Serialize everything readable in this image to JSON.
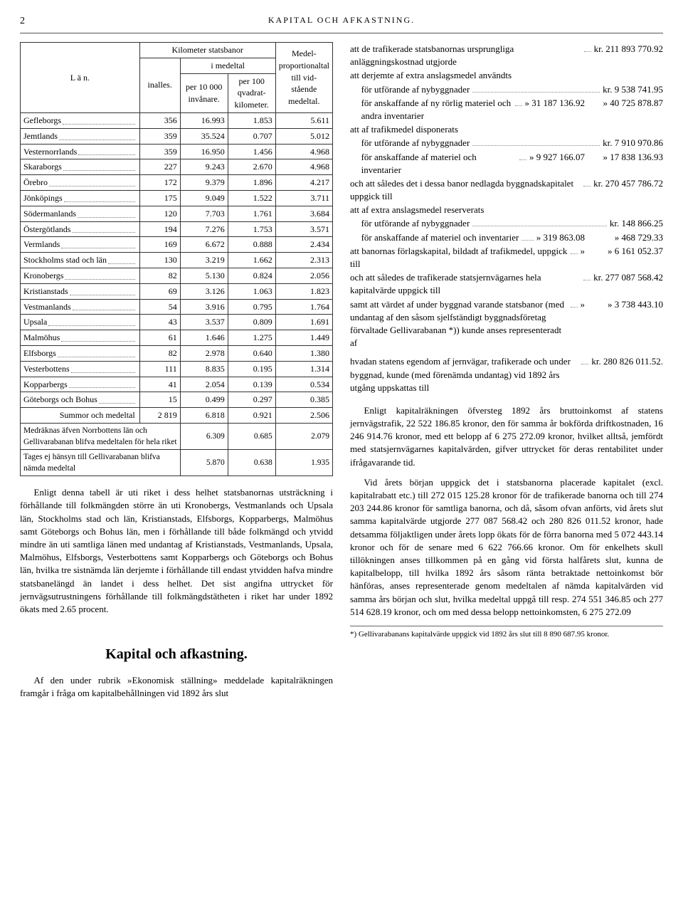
{
  "page_number": "2",
  "running_head": "KAPITAL OCH AFKASTNING.",
  "table": {
    "col_headers": {
      "lan": "L ä n.",
      "km_group": "Kilometer statsbanor",
      "inalles": "inalles.",
      "medeltal_group": "i medeltal",
      "per_10000": "per 10 000 invånare.",
      "per_100": "per 100 qvadrat-kilometer.",
      "medel_prop": "Medel-proportionaltal till vid-stående medeltal."
    },
    "rows": [
      {
        "lan": "Gefleborgs",
        "inalles": "356",
        "p10": "16.993",
        "p100": "1.853",
        "mp": "5.611"
      },
      {
        "lan": "Jemtlands",
        "inalles": "359",
        "p10": "35.524",
        "p100": "0.707",
        "mp": "5.012"
      },
      {
        "lan": "Vesternorrlands",
        "inalles": "359",
        "p10": "16.950",
        "p100": "1.456",
        "mp": "4.968"
      },
      {
        "lan": "Skaraborgs",
        "inalles": "227",
        "p10": "9.243",
        "p100": "2.670",
        "mp": "4.968"
      },
      {
        "lan": "Örebro",
        "inalles": "172",
        "p10": "9.379",
        "p100": "1.896",
        "mp": "4.217"
      },
      {
        "lan": "Jönköpings",
        "inalles": "175",
        "p10": "9.049",
        "p100": "1.522",
        "mp": "3.711"
      },
      {
        "lan": "Södermanlands",
        "inalles": "120",
        "p10": "7.703",
        "p100": "1.761",
        "mp": "3.684"
      },
      {
        "lan": "Östergötlands",
        "inalles": "194",
        "p10": "7.276",
        "p100": "1.753",
        "mp": "3.571"
      },
      {
        "lan": "Vermlands",
        "inalles": "169",
        "p10": "6.672",
        "p100": "0.888",
        "mp": "2.434"
      },
      {
        "lan": "Stockholms stad och län",
        "inalles": "130",
        "p10": "3.219",
        "p100": "1.662",
        "mp": "2.313"
      },
      {
        "lan": "Kronobergs",
        "inalles": "82",
        "p10": "5.130",
        "p100": "0.824",
        "mp": "2.056"
      },
      {
        "lan": "Kristianstads",
        "inalles": "69",
        "p10": "3.126",
        "p100": "1.063",
        "mp": "1.823"
      },
      {
        "lan": "Vestmanlands",
        "inalles": "54",
        "p10": "3.916",
        "p100": "0.795",
        "mp": "1.764"
      },
      {
        "lan": "Upsala",
        "inalles": "43",
        "p10": "3.537",
        "p100": "0.809",
        "mp": "1.691"
      },
      {
        "lan": "Malmöhus",
        "inalles": "61",
        "p10": "1.646",
        "p100": "1.275",
        "mp": "1.449"
      },
      {
        "lan": "Elfsborgs",
        "inalles": "82",
        "p10": "2.978",
        "p100": "0.640",
        "mp": "1.380"
      },
      {
        "lan": "Vesterbottens",
        "inalles": "111",
        "p10": "8.835",
        "p100": "0.195",
        "mp": "1.314"
      },
      {
        "lan": "Kopparbergs",
        "inalles": "41",
        "p10": "2.054",
        "p100": "0.139",
        "mp": "0.534"
      },
      {
        "lan": "Göteborgs och Bohus",
        "inalles": "15",
        "p10": "0.499",
        "p100": "0.297",
        "mp": "0.385"
      }
    ],
    "sum": {
      "label": "Summor och medeltal",
      "inalles": "2 819",
      "p10": "6.818",
      "p100": "0.921",
      "mp": "2.506"
    },
    "note1_label": "Medräknas äfven Norrbottens län och Gellivarabanan blifva medeltalen för hela riket",
    "note1": {
      "p10": "6.309",
      "p100": "0.685",
      "mp": "2.079"
    },
    "note2_label": "Tages ej hänsyn till Gellivarabanan blifva nämda medeltal",
    "note2": {
      "p10": "5.870",
      "p100": "0.638",
      "mp": "1.935"
    }
  },
  "left_para": "Enligt denna tabell är uti riket i dess helhet statsbanornas utsträckning i förhållande till folkmängden större än uti Kronobergs, Vestmanlands och Upsala län, Stockholms stad och län, Kristianstads, Elfsborgs, Kopparbergs, Malmöhus samt Göteborgs och Bohus län, men i förhållande till både folkmängd och ytvidd mindre än uti samtliga länen med undantag af Kristianstads, Vestmanlands, Upsala, Malmöhus, Elfsborgs, Vesterbottens samt Kopparbergs och Göteborgs och Bohus län, hvilka tre sistnämda län derjemte i förhållande till endast ytvidden hafva mindre statsbanelängd än landet i dess helhet. Det sist angifna uttrycket för jernvägsutrustningens förhållande till folkmängdstätheten i riket har under 1892 ökats med 2.65 procent.",
  "section_title": "Kapital och afkastning.",
  "left_intro": "Af den under rubrik »Ekonomisk ställning» meddelade kapitalräkningen framgår i fråga om kapitalbehållningen vid 1892 års slut",
  "right": {
    "lines": [
      {
        "txt": "att de trafikerade statsbanornas ursprungliga anläggningskostnad utgjorde",
        "amt": "kr. 211 893 770.92"
      },
      {
        "txt": "att derjemte af extra anslagsmedel användts"
      },
      {
        "txt": "för utförande af nybyggnader",
        "sub": true,
        "amt": "kr.  9 538 741.95"
      },
      {
        "txt": "för anskaffande af ny rörlig materiel och andra inventarier",
        "sub": true,
        "amt": "»  31 187 136.92",
        "amt2": "40 725 878.87"
      },
      {
        "txt": "att af trafikmedel disponerats"
      },
      {
        "txt": "för utförande af nybyggnader",
        "sub": true,
        "amt": "kr.  7 910 970.86"
      },
      {
        "txt": "för anskaffande af materiel och inventarier",
        "sub": true,
        "amt": "»   9 927 166.07",
        "amt2": "17 838 136.93"
      },
      {
        "txt": "och att således det i dessa banor nedlagda byggnadskapitalet uppgick till",
        "amt": "kr. 270 457 786.72"
      },
      {
        "txt": "att af extra anslagsmedel reserverats"
      },
      {
        "txt": "för utförande af nybyggnader",
        "sub": true,
        "amt": "kr.  148 866.25"
      },
      {
        "txt": "för anskaffande af materiel och inventarier",
        "sub": true,
        "amt": "»   319 863.08",
        "amt2": "468 729.33"
      },
      {
        "txt": "att banornas förlagskapital, bildadt af trafikmedel, uppgick till",
        "amt": "»",
        "amt2": "6 161 052.37"
      },
      {
        "txt": "och att således de trafikerade statsjernvägarnes hela kapitalvärde uppgick till",
        "amt": "kr. 277 087 568.42"
      },
      {
        "txt": "samt att värdet af under byggnad varande statsbanor (med undantag af den såsom sjelfständigt byggnadsföretag förvaltade Gellivarabanan *)) kunde anses representeradt af",
        "amt": "»",
        "amt2": "3 738 443.10"
      }
    ],
    "para1": "hvadan statens egendom af jernvägar, trafikerade och under byggnad, kunde (med förenämda undantag) vid 1892 års utgång uppskattas till",
    "para1_amt": "kr. 280 826 011.52.",
    "para2": "Enligt kapitalräkningen öfversteg 1892 års bruttoinkomst af statens jernvägstrafik, 22 522 186.85 kronor, den för samma år bokförda driftkostnaden, 16 246 914.76 kronor, med ett belopp af 6 275 272.09 kronor, hvilket alltså, jemfördt med statsjernvägarnes kapitalvärden, gifver uttrycket för deras rentabilitet under ifrågavarande tid.",
    "para3": "Vid årets början uppgick det i statsbanorna placerade kapitalet (excl. kapitalrabatt etc.) till 272 015 125.28 kronor för de trafikerade banorna och till 274 203 244.86 kronor för samtliga banorna, och då, såsom ofvan anförts, vid årets slut samma kapitalvärde utgjorde 277 087 568.42 och 280 826 011.52 kronor, hade detsamma följaktligen under årets lopp ökats för de förra banorna med 5 072 443.14 kronor och för de senare med 6 622 766.66 kronor. Om för enkelhets skull tillökningen anses tillkommen på en gång vid första halfårets slut, kunna de kapitalbelopp, till hvilka 1892 års såsom ränta betraktade nettoinkomst bör hänföras, anses representerade genom medeltalen af nämda kapitalvärden vid samma års början och slut, hvilka medeltal uppgå till resp. 274 551 346.85 och 277 514 628.19 kronor, och om med dessa belopp nettoinkomsten, 6 275 272.09",
    "footnote": "*) Gellivarabanans kapitalvärde uppgick vid 1892 års slut till 8 890 687.95 kronor."
  }
}
